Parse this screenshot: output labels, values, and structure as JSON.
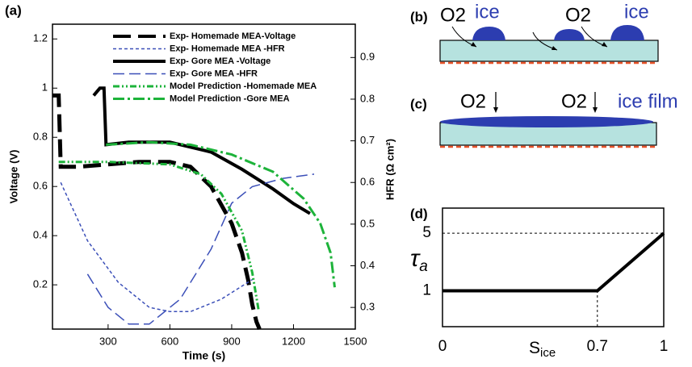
{
  "chart_data": [
    {
      "type": "line",
      "panel_label": "(a)",
      "xlabel": "Time (s)",
      "ylabel": "Voltage (V)",
      "y2label": "HFR (Ω cm²)",
      "xlim": [
        30,
        1500
      ],
      "xticks": [
        300,
        600,
        900,
        1200,
        1500
      ],
      "ylim": [
        0.02,
        1.26
      ],
      "yticks": [
        0.2,
        0.4,
        0.6,
        0.8,
        1,
        1.2
      ],
      "y2lim": [
        0.248,
        0.98
      ],
      "y2ticks": [
        0.3,
        0.4,
        0.5,
        0.6,
        0.7,
        0.8,
        0.9
      ],
      "series": [
        {
          "name": "Exp- Homemade MEA-Voltage",
          "color": "#000000",
          "style": "long-dash",
          "width": 5,
          "x": [
            30,
            60,
            70,
            150,
            300,
            450,
            600,
            700,
            800,
            900,
            950,
            980,
            1000,
            1020,
            1035
          ],
          "values": [
            0.97,
            0.97,
            0.68,
            0.68,
            0.69,
            0.7,
            0.7,
            0.68,
            0.6,
            0.45,
            0.33,
            0.22,
            0.12,
            0.05,
            0.02
          ]
        },
        {
          "name": "Exp- Homemade MEA -HFR",
          "color": "#3b4fb8",
          "style": "short-dash",
          "width": 1.5,
          "axis": "y2",
          "x": [
            70,
            200,
            350,
            500,
            600,
            700,
            850,
            1010
          ],
          "values": [
            0.6,
            0.46,
            0.36,
            0.3,
            0.29,
            0.29,
            0.32,
            0.37
          ]
        },
        {
          "name": "Exp- Gore MEA -Voltage",
          "color": "#000000",
          "style": "solid",
          "width": 4,
          "x": [
            230,
            260,
            280,
            290,
            400,
            600,
            800,
            950,
            1100,
            1200,
            1280
          ],
          "values": [
            0.97,
            1.0,
            1.0,
            0.77,
            0.78,
            0.78,
            0.74,
            0.67,
            0.59,
            0.53,
            0.49
          ]
        },
        {
          "name": "Exp- Gore MEA -HFR",
          "color": "#3b4fb8",
          "style": "long-dash-thin",
          "width": 1.5,
          "axis": "y2",
          "x": [
            200,
            300,
            400,
            500,
            650,
            800,
            900,
            1000,
            1150,
            1300
          ],
          "values": [
            0.38,
            0.3,
            0.26,
            0.26,
            0.32,
            0.44,
            0.55,
            0.59,
            0.61,
            0.62
          ]
        },
        {
          "name": "Model Prediction -Homemade MEA",
          "color": "#1db33a",
          "style": "dash-dot-dot",
          "width": 3,
          "x": [
            60,
            300,
            600,
            750,
            850,
            950,
            1000,
            1030
          ],
          "values": [
            0.7,
            0.7,
            0.69,
            0.65,
            0.57,
            0.42,
            0.25,
            0.1
          ]
        },
        {
          "name": "Model Prediction -Gore MEA",
          "color": "#1db33a",
          "style": "dash-dot",
          "width": 3,
          "x": [
            290,
            500,
            700,
            900,
            1100,
            1250,
            1330,
            1380,
            1400
          ],
          "values": [
            0.77,
            0.78,
            0.77,
            0.73,
            0.66,
            0.55,
            0.45,
            0.33,
            0.19
          ]
        }
      ]
    },
    {
      "type": "line",
      "panel_label": "(d)",
      "xlabel": "S",
      "xlabel_sub": "ice",
      "ylabel": "τ",
      "ylabel_sub": "a",
      "xlim": [
        0,
        1
      ],
      "xticks": [
        0,
        0.7,
        1
      ],
      "ylim": [
        -1.5,
        6.75
      ],
      "yticks": [
        1,
        5
      ],
      "series": [
        {
          "color": "#000000",
          "style": "solid",
          "width": 4,
          "x": [
            0,
            0.7,
            1
          ],
          "values": [
            1,
            1,
            5
          ]
        }
      ]
    }
  ],
  "diagrams": [
    {
      "label": "(b)",
      "texts": [
        "O2",
        "ice",
        "O2",
        "ice"
      ]
    },
    {
      "label": "(c)",
      "texts": [
        "O2",
        "O2",
        "ice film"
      ]
    }
  ]
}
